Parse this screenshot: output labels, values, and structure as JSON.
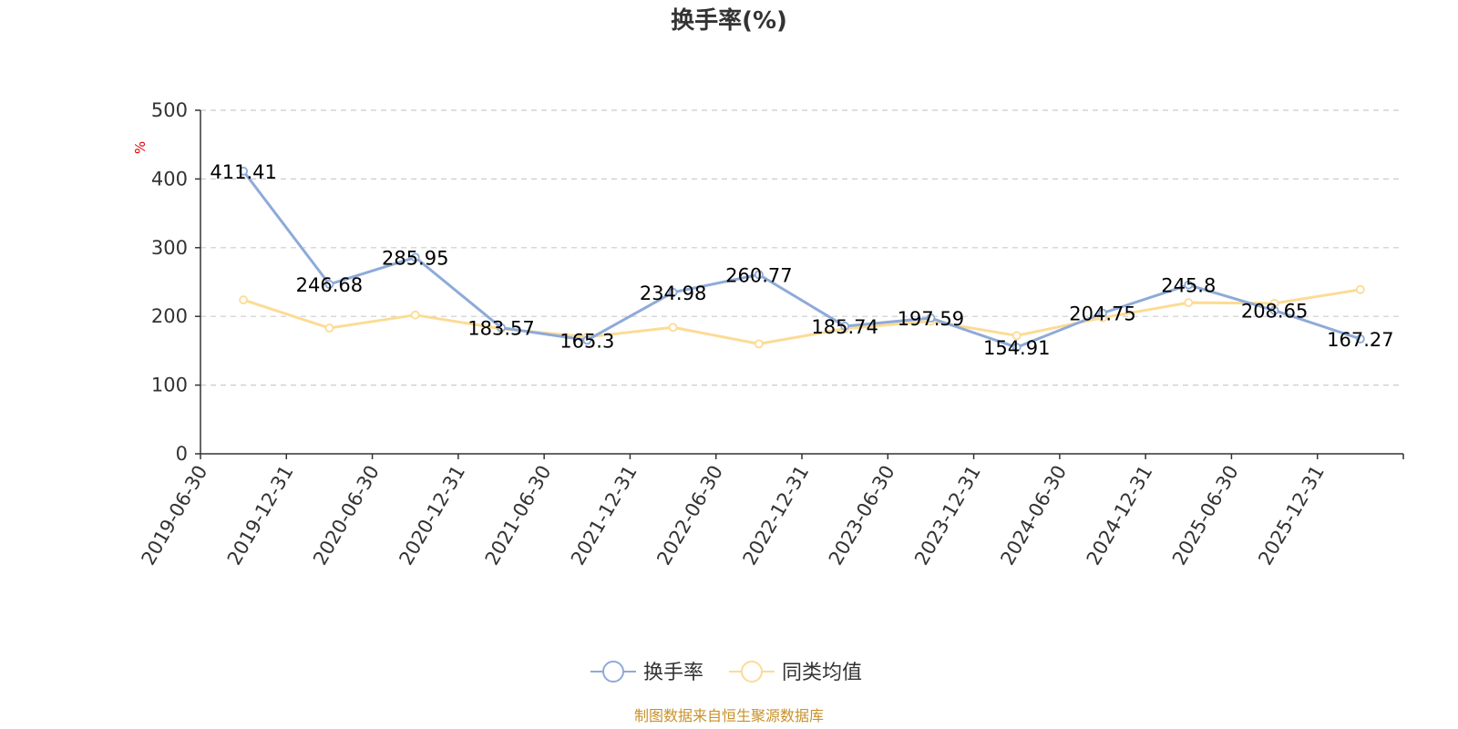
{
  "chart_data": {
    "type": "line",
    "title": "换手率(%)",
    "y_unit": "%",
    "ylim": [
      0,
      500
    ],
    "yticks": [
      0,
      100,
      200,
      300,
      400,
      500
    ],
    "grid": true,
    "legend_position": "bottom",
    "categories": [
      "2019-06-30",
      "2019-12-31",
      "2020-06-30",
      "2020-12-31",
      "2021-06-30",
      "2021-12-31",
      "2022-06-30",
      "2022-12-31",
      "2023-06-30",
      "2023-12-31",
      "2024-06-30",
      "2024-12-31",
      "2025-06-30",
      "2025-12-31"
    ],
    "series": [
      {
        "name": "换手率",
        "color": "#8eaad8",
        "show_labels": true,
        "values": [
          411.41,
          246.68,
          285.95,
          183.57,
          165.3,
          234.98,
          260.77,
          185.74,
          197.59,
          154.91,
          204.75,
          245.8,
          208.65,
          167.27
        ],
        "labels": [
          "411.41",
          "246.68",
          "285.95",
          "183.57",
          "165.3",
          "234.98",
          "260.77",
          "185.74",
          "197.59",
          "154.91",
          "204.75",
          "245.8",
          "208.65",
          "167.27"
        ]
      },
      {
        "name": "同类均值",
        "color": "#fddb95",
        "show_labels": false,
        "values": [
          224,
          183,
          202,
          182,
          170,
          184,
          160,
          182,
          193,
          172,
          198,
          220,
          219,
          239
        ]
      }
    ]
  },
  "footer": {
    "source": "制图数据来自恒生聚源数据库"
  }
}
